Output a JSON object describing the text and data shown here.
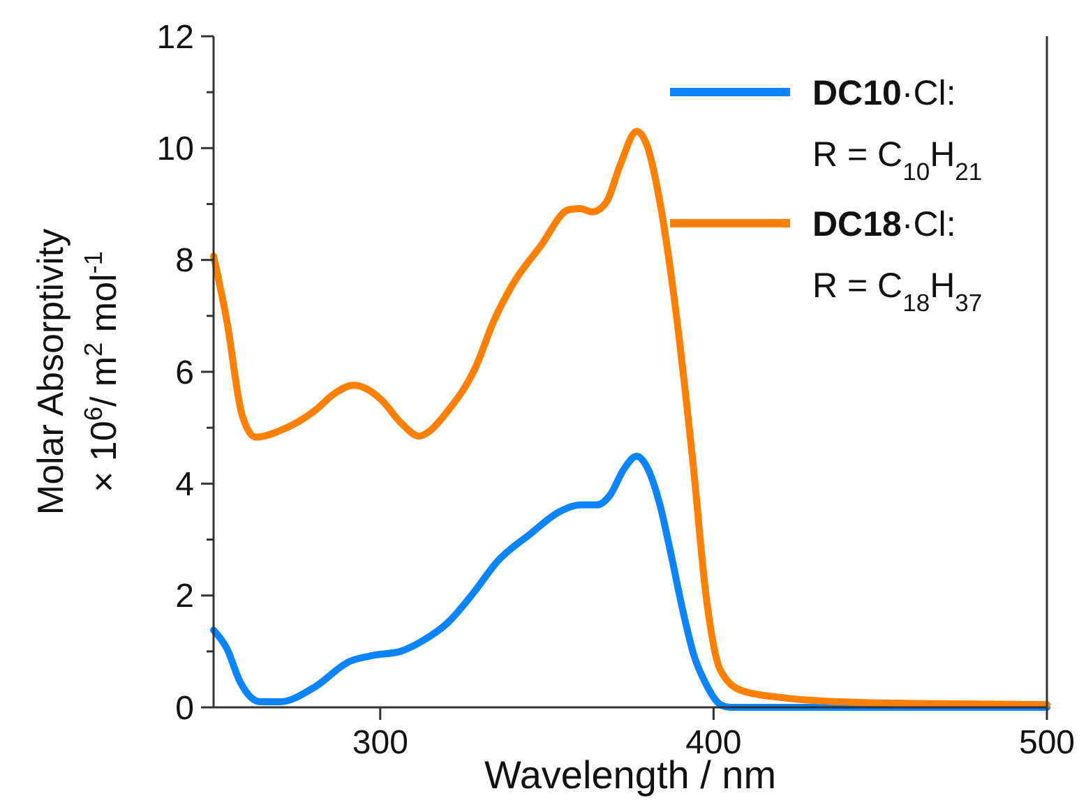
{
  "chart_data": {
    "type": "line",
    "xlabel": "Wavelength / nm",
    "ylabel": "Molar Absorptivity\n× 10$^{6}$/ m$^{2}$ mol$^{-1}$",
    "xlim": [
      250,
      500
    ],
    "xticks": [
      300,
      400,
      500
    ],
    "ylim": [
      0,
      12
    ],
    "yticks": [
      0,
      {
        "value": 1,
        "label": null
      },
      2,
      {
        "value": 3,
        "label": null
      },
      4,
      {
        "value": 5,
        "label": null
      },
      6,
      {
        "value": 7,
        "label": null
      },
      8,
      {
        "value": 9,
        "label": null
      },
      10,
      {
        "value": 11,
        "label": null
      },
      12
    ],
    "grid": false,
    "legend": "top right",
    "line_style": "solid",
    "marker": "none",
    "series": [
      {
        "name": "DC10·Cl:\nR = C$_{10}$H$_{21}$",
        "color": "#0a84ff",
        "x": [
          250,
          254,
          258,
          264,
          270,
          280,
          290.8,
          298,
          306,
          313,
          320,
          328,
          335,
          345,
          353.8,
          360,
          365,
          369,
          373,
          376.9,
          380,
          384,
          387,
          391,
          394,
          397.7,
          400,
          402,
          405,
          420,
          450,
          500
        ],
        "values": [
          1.38,
          1.05,
          0.45,
          0.1,
          0.1,
          0.35,
          0.82,
          0.93,
          1.0,
          1.2,
          1.5,
          2.05,
          2.6,
          3.1,
          3.5,
          3.62,
          3.62,
          3.8,
          4.25,
          4.49,
          4.3,
          3.6,
          2.8,
          1.67,
          0.95,
          0.42,
          0.18,
          0.05,
          0.0,
          0.0,
          0.0,
          0.0
        ]
      },
      {
        "name": "DC18·Cl:\nR = C$_{18}$H$_{37}$",
        "color": "#ff8000",
        "x": [
          250,
          254,
          258.5,
          262.6,
          270,
          280.9,
          286,
          292,
          300.5,
          306,
          311.7,
          315,
          320,
          328.6,
          334,
          339.8,
          348,
          356.6,
          360,
          363.6,
          367.8,
          372,
          376.9,
          380,
          384,
          387.4,
          393.7,
          397.9,
          402,
          408.4,
          421,
          437.8,
          460,
          500
        ],
        "values": [
          8.07,
          6.9,
          5.24,
          4.83,
          4.95,
          5.33,
          5.6,
          5.76,
          5.49,
          5.1,
          4.85,
          4.95,
          5.28,
          6.08,
          6.9,
          7.57,
          8.24,
          8.9,
          8.92,
          8.86,
          9.03,
          9.7,
          10.3,
          10.05,
          9.0,
          7.67,
          4.44,
          1.92,
          0.67,
          0.3,
          0.17,
          0.1,
          0.07,
          0.05
        ]
      }
    ]
  }
}
